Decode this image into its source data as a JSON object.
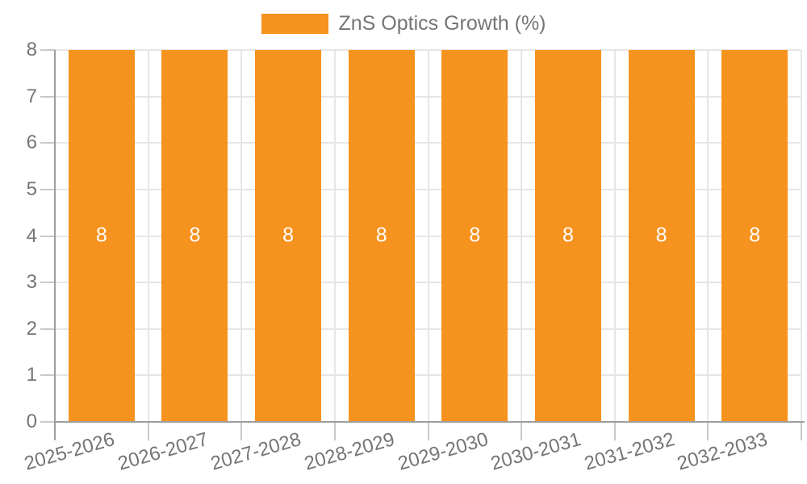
{
  "legend": {
    "label": "ZnS Optics Growth (%)"
  },
  "chart_data": {
    "type": "bar",
    "title": "",
    "xlabel": "",
    "ylabel": "",
    "series_name": "ZnS Optics Growth (%)",
    "categories": [
      "2025-2026",
      "2026-2027",
      "2027-2028",
      "2028-2029",
      "2029-2030",
      "2030-2031",
      "2031-2032",
      "2032-2033"
    ],
    "values": [
      8,
      8,
      8,
      8,
      8,
      8,
      8,
      8
    ],
    "value_labels": [
      "8",
      "8",
      "8",
      "8",
      "8",
      "8",
      "8",
      "8"
    ],
    "ylim": [
      0,
      8
    ],
    "yticks": [
      0,
      1,
      2,
      3,
      4,
      5,
      6,
      7,
      8
    ],
    "grid": true,
    "legend_position": "top-center",
    "colors": {
      "bar": "#F6921E",
      "value_label": "#FFFFFF",
      "axis_text": "#757575",
      "gridline": "#E6E6E6",
      "axis_line": "#9E9E9E",
      "tick": "#C9C9C9",
      "background": "#FFFFFF"
    }
  }
}
